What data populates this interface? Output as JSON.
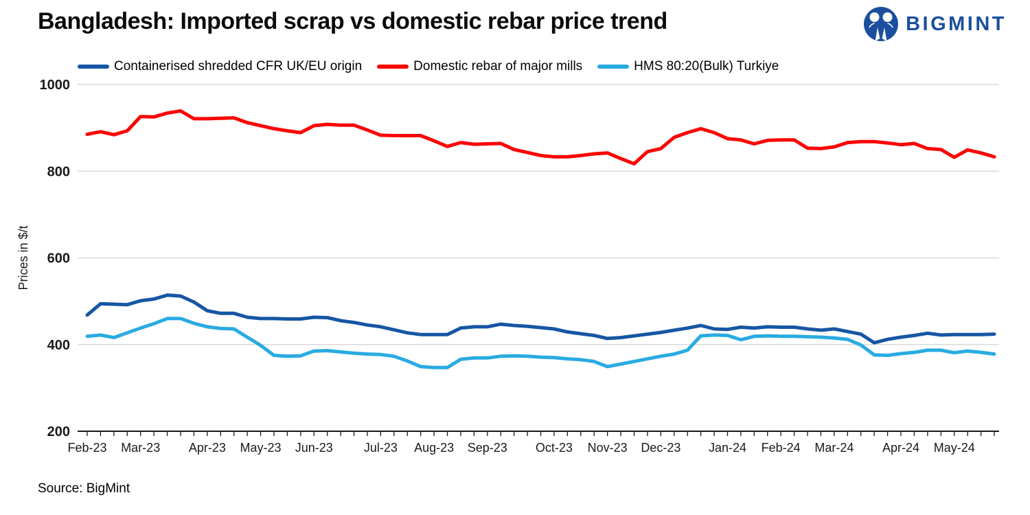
{
  "brand": {
    "name": "BIGMINT",
    "color": "#1B4F9E"
  },
  "chart_data": {
    "type": "line",
    "title": "Bangladesh: Imported scrap vs domestic rebar price trend",
    "ylabel": "Prices in $/t",
    "ylim": [
      200,
      1000
    ],
    "yticks": [
      200,
      400,
      600,
      800,
      1000
    ],
    "x_frequency": "weekly",
    "n_points": 69,
    "grid": true,
    "grid_color": "#D9D9D9",
    "axis_color": "#1A1A1A",
    "legend_position": "top",
    "month_ticks": [
      {
        "label": "Feb-23",
        "week": 0
      },
      {
        "label": "Mar-23",
        "week": 4
      },
      {
        "label": "Apr-23",
        "week": 9
      },
      {
        "label": "May-23",
        "week": 13
      },
      {
        "label": "Jun-23",
        "week": 17
      },
      {
        "label": "Jul-23",
        "week": 22
      },
      {
        "label": "Aug-23",
        "week": 26
      },
      {
        "label": "Sep-23",
        "week": 30
      },
      {
        "label": "Oct-23",
        "week": 35
      },
      {
        "label": "Nov-23",
        "week": 39
      },
      {
        "label": "Dec-23",
        "week": 43
      },
      {
        "label": "Jan-24",
        "week": 48
      },
      {
        "label": "Feb-24",
        "week": 52
      },
      {
        "label": "Mar-24",
        "week": 56
      },
      {
        "label": "Apr-24",
        "week": 61
      },
      {
        "label": "May-24",
        "week": 65
      }
    ],
    "series": [
      {
        "name": "Containerised shredded CFR UK/EU origin",
        "color": "#1656A4",
        "values": [
          468,
          494,
          493,
          492,
          501,
          505,
          514,
          512,
          498,
          478,
          472,
          472,
          463,
          460,
          460,
          459,
          459,
          463,
          462,
          455,
          451,
          445,
          441,
          434,
          427,
          423,
          423,
          423,
          438,
          441,
          441,
          447,
          444,
          442,
          439,
          436,
          429,
          425,
          421,
          414,
          416,
          420,
          424,
          428,
          433,
          438,
          444,
          436,
          435,
          440,
          438,
          441,
          440,
          440,
          436,
          433,
          436,
          430,
          424,
          404,
          412,
          417,
          421,
          426,
          422,
          423,
          423,
          423,
          424
        ]
      },
      {
        "name": "Domestic rebar of major mills",
        "color": "#FB0505",
        "values": [
          885,
          891,
          884,
          893,
          926,
          925,
          934,
          939,
          921,
          921,
          922,
          923,
          912,
          905,
          898,
          893,
          889,
          905,
          908,
          906,
          906,
          895,
          883,
          882,
          882,
          882,
          870,
          857,
          866,
          862,
          863,
          864,
          850,
          843,
          836,
          833,
          833,
          836,
          840,
          842,
          829,
          817,
          845,
          852,
          878,
          889,
          898,
          889,
          875,
          872,
          863,
          871,
          872,
          872,
          853,
          852,
          856,
          866,
          868,
          868,
          865,
          861,
          864,
          852,
          850,
          832,
          849,
          842,
          833
        ]
      },
      {
        "name": "HMS 80:20(Bulk) Turkiye",
        "color": "#29ABE2",
        "values": [
          419,
          422,
          416,
          427,
          438,
          448,
          460,
          460,
          449,
          441,
          437,
          436,
          417,
          398,
          375,
          373,
          374,
          385,
          386,
          383,
          380,
          378,
          377,
          373,
          362,
          349,
          347,
          347,
          366,
          369,
          369,
          373,
          374,
          373,
          371,
          370,
          367,
          365,
          361,
          349,
          355,
          361,
          367,
          373,
          378,
          387,
          420,
          422,
          421,
          411,
          419,
          420,
          419,
          419,
          418,
          417,
          415,
          412,
          399,
          376,
          375,
          379,
          382,
          387,
          387,
          381,
          385,
          382,
          378
        ]
      }
    ],
    "source": "Source: BigMint"
  }
}
